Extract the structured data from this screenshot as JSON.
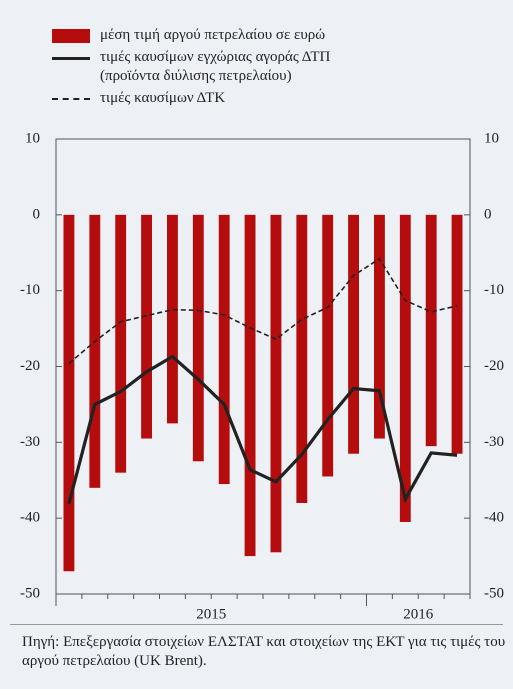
{
  "chart_data": {
    "type": "bar_line",
    "categories": [
      null,
      null,
      null,
      null,
      null,
      null,
      null,
      null,
      null,
      null,
      null,
      null,
      null,
      null,
      null,
      null
    ],
    "x_groups": [
      {
        "label": "2015",
        "count": 12
      },
      {
        "label": "2016",
        "count": 4
      }
    ],
    "series": [
      {
        "name": "μέση τιμή αργού πετρελαίου σε ευρώ",
        "type": "bar",
        "color": "#b50d0d",
        "values": [
          -47,
          -36,
          -34,
          -29.5,
          -27.5,
          -32.5,
          -35.5,
          -45,
          -44.5,
          -38,
          -34.5,
          -31.5,
          -29.5,
          -40.5,
          -30.5,
          -31.5
        ]
      },
      {
        "name": "τιμές καυσίμων εγχώριας αγοράς ΔΤΠ (προϊόντα διύλισης πετρελαίου)",
        "type": "line",
        "style": "solid",
        "color": "#222222",
        "values": [
          -38.1,
          -25,
          -23.3,
          -20.7,
          -18.7,
          -21.7,
          -25,
          -33.6,
          -35.2,
          -31.6,
          -27,
          -22.9,
          -23.2,
          -37.5,
          -31.4,
          -31.7
        ]
      },
      {
        "name": "τιμές καυσίμων ΔΤΚ",
        "type": "line",
        "style": "dashed",
        "color": "#222222",
        "values": [
          -19.6,
          -16.7,
          -14.1,
          -13.3,
          -12.5,
          -12.6,
          -13.2,
          -14.9,
          -16.4,
          -13.8,
          -12.2,
          -8,
          -5.8,
          -11.3,
          -12.8,
          -12
        ]
      }
    ],
    "ylim": [
      -50,
      10
    ],
    "yticks": [
      10,
      0,
      -10,
      -20,
      -30,
      -40,
      -50
    ],
    "y2lim": [
      -50,
      10
    ],
    "y2ticks": [
      10,
      0,
      -10,
      -20,
      -30,
      -40,
      -50
    ],
    "source": "Πηγή: Επεξεργασία στοιχείων ΕΛΣΤΑΤ και στοιχείων της ΕΚΤ για τις τιμές του αργού πετρελαίου (UK Brent)."
  }
}
